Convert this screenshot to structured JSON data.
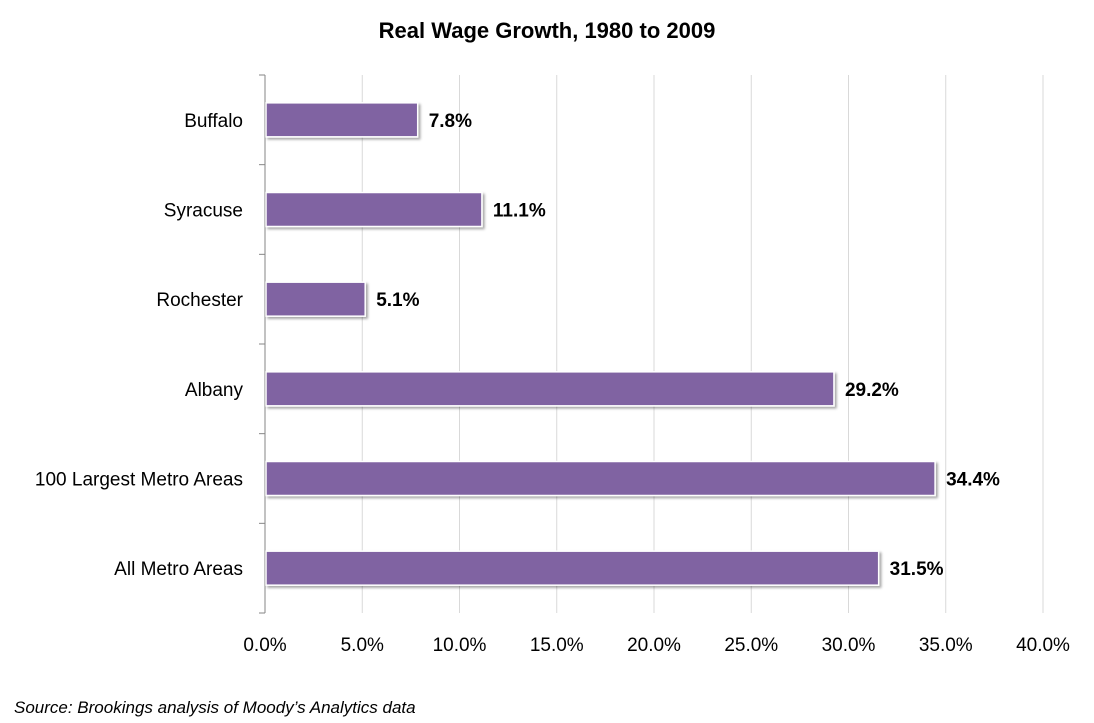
{
  "chart_data": {
    "type": "bar",
    "orientation": "horizontal",
    "title": "Real Wage Growth, 1980 to 2009",
    "categories": [
      "Buffalo",
      "Syracuse",
      "Rochester",
      "Albany",
      "100 Largest Metro Areas",
      "All Metro Areas"
    ],
    "values": [
      7.8,
      11.1,
      5.1,
      29.2,
      34.4,
      31.5
    ],
    "data_labels": [
      "7.8%",
      "11.1%",
      "5.1%",
      "29.2%",
      "34.4%",
      "31.5%"
    ],
    "xlim": [
      0,
      40
    ],
    "x_ticks": [
      0,
      5,
      10,
      15,
      20,
      25,
      30,
      35,
      40
    ],
    "x_tick_labels": [
      "0.0%",
      "5.0%",
      "10.0%",
      "15.0%",
      "20.0%",
      "25.0%",
      "30.0%",
      "35.0%",
      "40.0%"
    ],
    "xlabel": "",
    "ylabel": "",
    "grid": true,
    "legend": "none",
    "bar_color": "#8064a2",
    "source": "Source: Brookings analysis of Moody’s Analytics data"
  }
}
